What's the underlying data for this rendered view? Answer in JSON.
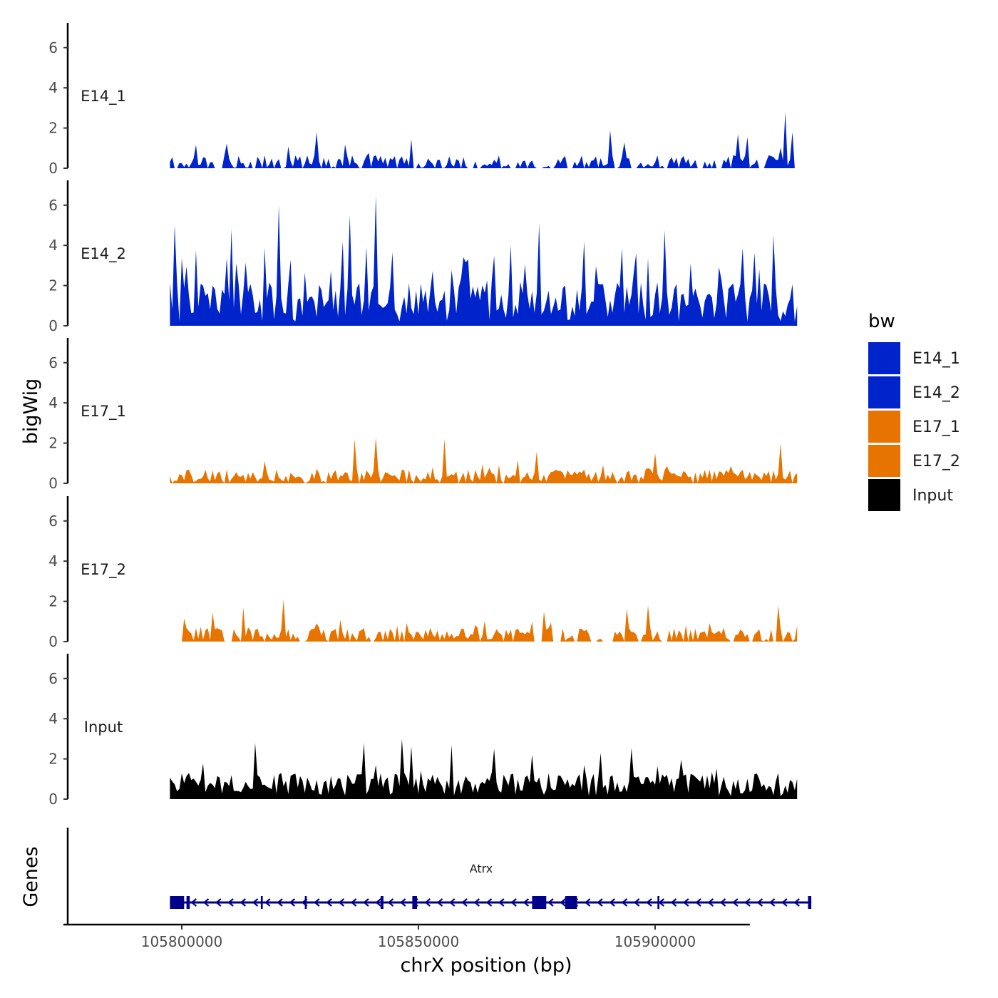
{
  "chart_data": {
    "type": "area",
    "ylabel": "bigWig",
    "xlabel": "chrX position (bp)",
    "ylim": [
      0,
      7
    ],
    "yticks": [
      "0",
      "2",
      "4",
      "6"
    ],
    "xlim": [
      105775000,
      105920000
    ],
    "xticks": [
      {
        "value": 105800000,
        "label": "105800000"
      },
      {
        "value": 105850000,
        "label": "105850000"
      },
      {
        "value": 105900000,
        "label": "105900000"
      }
    ],
    "data_range": [
      105797500,
      105930000
    ],
    "bin_size_bp": 500,
    "tracks": [
      {
        "name": "E14_1",
        "label": "E14_1",
        "color": "#0024CC",
        "baseline": 0.3,
        "spread": 0.35,
        "spike_rate": 0.07,
        "spike_max": 1.4,
        "gap_rate": 0.13,
        "seed": 11,
        "peaks": [
          {
            "x": 105927500,
            "y": 2.8
          },
          {
            "x": 105828500,
            "y": 1.8
          },
          {
            "x": 105890500,
            "y": 1.9
          },
          {
            "x": 105917500,
            "y": 1.7
          },
          {
            "x": 105929000,
            "y": 1.8
          }
        ]
      },
      {
        "name": "E14_2",
        "label": "E14_2",
        "color": "#0024CC",
        "baseline": 1.2,
        "spread": 1.0,
        "spike_rate": 0.16,
        "spike_max": 2.8,
        "gap_rate": 0.0,
        "seed": 23,
        "peaks": [
          {
            "x": 105841000,
            "y": 6.5
          },
          {
            "x": 105820500,
            "y": 6.0
          },
          {
            "x": 105835500,
            "y": 5.5
          },
          {
            "x": 105798500,
            "y": 5.0
          },
          {
            "x": 105875500,
            "y": 5.1
          },
          {
            "x": 105810500,
            "y": 4.8
          },
          {
            "x": 105925000,
            "y": 4.5
          }
        ]
      },
      {
        "name": "E17_1",
        "label": "E17_1",
        "color": "#E87400",
        "baseline": 0.35,
        "spread": 0.35,
        "spike_rate": 0.08,
        "spike_max": 0.9,
        "gap_rate": 0.0,
        "seed": 37,
        "peaks": [
          {
            "x": 105841000,
            "y": 2.3
          },
          {
            "x": 105836500,
            "y": 2.2
          },
          {
            "x": 105855500,
            "y": 2.2
          },
          {
            "x": 105926500,
            "y": 2.0
          },
          {
            "x": 105875000,
            "y": 1.6
          },
          {
            "x": 105900000,
            "y": 1.5
          }
        ]
      },
      {
        "name": "E17_2",
        "label": "E17_2",
        "color": "#E87400",
        "baseline": 0.35,
        "spread": 0.35,
        "spike_rate": 0.09,
        "spike_max": 1.0,
        "gap_rate": 0.08,
        "seed": 53,
        "peaks": [
          {
            "x": 105821500,
            "y": 2.1
          },
          {
            "x": 105813000,
            "y": 1.7
          },
          {
            "x": 105898500,
            "y": 1.8
          },
          {
            "x": 105926000,
            "y": 1.8
          },
          {
            "x": 105876500,
            "y": 1.5
          }
        ]
      },
      {
        "name": "Input",
        "label": "Input",
        "color": "#000000",
        "baseline": 0.75,
        "spread": 0.6,
        "spike_rate": 0.1,
        "spike_max": 1.5,
        "gap_rate": 0.0,
        "seed": 71,
        "peaks": [
          {
            "x": 105846500,
            "y": 3.0
          },
          {
            "x": 105815500,
            "y": 2.8
          },
          {
            "x": 105838500,
            "y": 2.8
          },
          {
            "x": 105857000,
            "y": 2.7
          },
          {
            "x": 105866000,
            "y": 2.5
          }
        ]
      }
    ],
    "legend": {
      "title": "bw",
      "entries": [
        {
          "label": "E14_1",
          "color": "#0024CC"
        },
        {
          "label": "E14_2",
          "color": "#0024CC"
        },
        {
          "label": "E17_1",
          "color": "#E87400"
        },
        {
          "label": "E17_2",
          "color": "#E87400"
        },
        {
          "label": "Input",
          "color": "#000000"
        }
      ]
    },
    "genes_panel": {
      "label": "Genes",
      "gene_name": "Atrx",
      "gene_color": "#00008B",
      "start": 105797500,
      "end": 105933000,
      "strand": "-",
      "exons": [
        {
          "start": 105797500,
          "end": 105800500
        },
        {
          "start": 105801000,
          "end": 105801700
        },
        {
          "start": 105816700,
          "end": 105817100
        },
        {
          "start": 105826000,
          "end": 105826400
        },
        {
          "start": 105842000,
          "end": 105842600
        },
        {
          "start": 105848700,
          "end": 105849700
        },
        {
          "start": 105874000,
          "end": 105877000
        },
        {
          "start": 105881000,
          "end": 105883500
        },
        {
          "start": 105900500,
          "end": 105900900
        },
        {
          "start": 105932300,
          "end": 105933000
        }
      ]
    }
  }
}
